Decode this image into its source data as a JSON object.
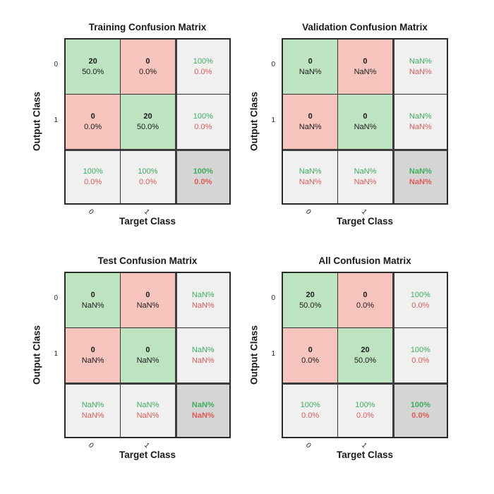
{
  "colors": {
    "diag_bg": "#bde3c0",
    "offdiag_bg": "#f7c4be",
    "summary_bg": "#f0f0f0",
    "total_bg": "#d5d5d5",
    "good_text": "#3cae5c",
    "bad_text": "#e05a55",
    "count_text": "#1a1a1a",
    "grid_line": "#333333",
    "separator_line": "#3d3d3d",
    "figure_bg": "#ffffff"
  },
  "chart_data": [
    {
      "type": "heatmap",
      "title": "Training Confusion Matrix",
      "xlabel": "Target Class",
      "ylabel": "Output Class",
      "classes": [
        "0",
        "1"
      ],
      "row_ticks": [
        "0",
        "1"
      ],
      "col_ticks": [
        "0",
        "1"
      ],
      "counts": [
        [
          20,
          0
        ],
        [
          0,
          20
        ]
      ],
      "cells": [
        [
          {
            "v": "20",
            "p": "50.0%"
          },
          {
            "v": "0",
            "p": "0.0%"
          },
          {
            "v": "100%",
            "p": "0.0%"
          }
        ],
        [
          {
            "v": "0",
            "p": "0.0%"
          },
          {
            "v": "20",
            "p": "50.0%"
          },
          {
            "v": "100%",
            "p": "0.0%"
          }
        ],
        [
          {
            "v": "100%",
            "p": "0.0%"
          },
          {
            "v": "100%",
            "p": "0.0%"
          },
          {
            "v": "100%",
            "p": "0.0%"
          }
        ]
      ]
    },
    {
      "type": "heatmap",
      "title": "Validation Confusion Matrix",
      "xlabel": "Target Class",
      "ylabel": "Output Class",
      "classes": [
        "0",
        "1"
      ],
      "row_ticks": [
        "0",
        "1"
      ],
      "col_ticks": [
        "0",
        "1"
      ],
      "counts": [
        [
          0,
          0
        ],
        [
          0,
          0
        ]
      ],
      "cells": [
        [
          {
            "v": "0",
            "p": "NaN%"
          },
          {
            "v": "0",
            "p": "NaN%"
          },
          {
            "v": "NaN%",
            "p": "NaN%"
          }
        ],
        [
          {
            "v": "0",
            "p": "NaN%"
          },
          {
            "v": "0",
            "p": "NaN%"
          },
          {
            "v": "NaN%",
            "p": "NaN%"
          }
        ],
        [
          {
            "v": "NaN%",
            "p": "NaN%"
          },
          {
            "v": "NaN%",
            "p": "NaN%"
          },
          {
            "v": "NaN%",
            "p": "NaN%"
          }
        ]
      ]
    },
    {
      "type": "heatmap",
      "title": "Test Confusion Matrix",
      "xlabel": "Target Class",
      "ylabel": "Output Class",
      "classes": [
        "0",
        "1"
      ],
      "row_ticks": [
        "0",
        "1"
      ],
      "col_ticks": [
        "0",
        "1"
      ],
      "counts": [
        [
          0,
          0
        ],
        [
          0,
          0
        ]
      ],
      "cells": [
        [
          {
            "v": "0",
            "p": "NaN%"
          },
          {
            "v": "0",
            "p": "NaN%"
          },
          {
            "v": "NaN%",
            "p": "NaN%"
          }
        ],
        [
          {
            "v": "0",
            "p": "NaN%"
          },
          {
            "v": "0",
            "p": "NaN%"
          },
          {
            "v": "NaN%",
            "p": "NaN%"
          }
        ],
        [
          {
            "v": "NaN%",
            "p": "NaN%"
          },
          {
            "v": "NaN%",
            "p": "NaN%"
          },
          {
            "v": "NaN%",
            "p": "NaN%"
          }
        ]
      ]
    },
    {
      "type": "heatmap",
      "title": "All Confusion Matrix",
      "xlabel": "Target Class",
      "ylabel": "Output Class",
      "classes": [
        "0",
        "1"
      ],
      "row_ticks": [
        "0",
        "1"
      ],
      "col_ticks": [
        "0",
        "1"
      ],
      "counts": [
        [
          20,
          0
        ],
        [
          0,
          20
        ]
      ],
      "cells": [
        [
          {
            "v": "20",
            "p": "50.0%"
          },
          {
            "v": "0",
            "p": "0.0%"
          },
          {
            "v": "100%",
            "p": "0.0%"
          }
        ],
        [
          {
            "v": "0",
            "p": "0.0%"
          },
          {
            "v": "20",
            "p": "50.0%"
          },
          {
            "v": "100%",
            "p": "0.0%"
          }
        ],
        [
          {
            "v": "100%",
            "p": "0.0%"
          },
          {
            "v": "100%",
            "p": "0.0%"
          },
          {
            "v": "100%",
            "p": "0.0%"
          }
        ]
      ]
    }
  ]
}
